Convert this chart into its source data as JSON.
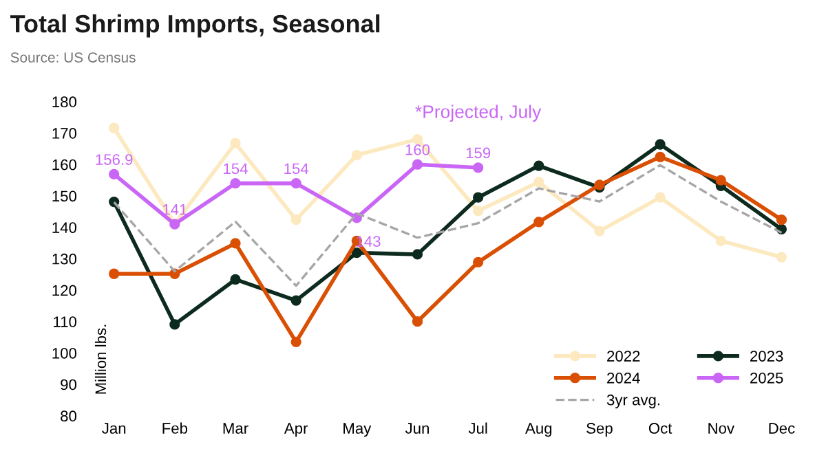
{
  "chart_data": {
    "type": "line",
    "title": "Total Shrimp Imports, Seasonal",
    "subtitle": "Source: US Census",
    "ylabel": "Million lbs.",
    "categories": [
      "Jan",
      "Feb",
      "Mar",
      "Apr",
      "May",
      "Jun",
      "Jul",
      "Aug",
      "Sep",
      "Oct",
      "Nov",
      "Dec"
    ],
    "series": [
      {
        "name": "2022",
        "color": "#fde9c0",
        "values": [
          171.6,
          141.1,
          166.8,
          142.4,
          163,
          168,
          145.2,
          154.4,
          138.8,
          149.5,
          135.7,
          130.5
        ]
      },
      {
        "name": "2023",
        "color": "#0d2a1e",
        "values": [
          148.1,
          109.1,
          123.4,
          116.7,
          131.9,
          131.4,
          149.5,
          159.6,
          152.7,
          166.4,
          153.2,
          139.4
        ]
      },
      {
        "name": "2024",
        "color": "#d94f04",
        "values": [
          125.2,
          125.2,
          134.9,
          103.5,
          135.7,
          110,
          128.9,
          141.7,
          153.5,
          162.4,
          155,
          142.4
        ]
      },
      {
        "name": "2025",
        "color": "#c966f5",
        "values": [
          156.9,
          141,
          154,
          154,
          143,
          160,
          159,
          null,
          null,
          null,
          null,
          null
        ],
        "data_labels": true
      },
      {
        "name": "3yr avg.",
        "color": "#a6a6a6",
        "line_style": "dashed",
        "marker": "none",
        "values": [
          148,
          126,
          141.8,
          121.4,
          144.4,
          136.7,
          141.3,
          152.4,
          148.2,
          159.8,
          148.2,
          138.3
        ]
      }
    ],
    "annotations": [
      {
        "text": "*Projected, July",
        "x": "Jul",
        "y": 159
      }
    ],
    "ylim": [
      80,
      180
    ],
    "yticks": [
      80,
      90,
      100,
      110,
      120,
      130,
      140,
      150,
      160,
      170,
      180
    ],
    "marker": "circle",
    "line_style": "solid",
    "grid": false,
    "legend": "bottom right"
  }
}
